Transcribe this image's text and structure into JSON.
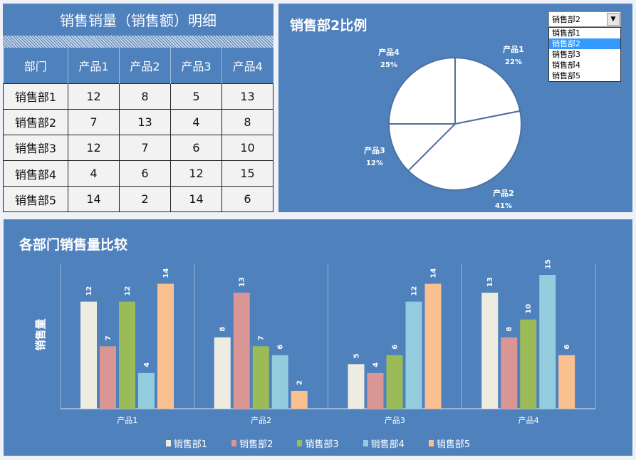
{
  "table": {
    "title": "销售销量（销售额）明细",
    "headers": [
      "部门",
      "产品1",
      "产品2",
      "产品3",
      "产品4"
    ],
    "rows": [
      [
        "销售部1",
        "12",
        "8",
        "5",
        "13"
      ],
      [
        "销售部2",
        "7",
        "13",
        "4",
        "8"
      ],
      [
        "销售部3",
        "12",
        "7",
        "6",
        "10"
      ],
      [
        "销售部4",
        "4",
        "6",
        "12",
        "15"
      ],
      [
        "销售部5",
        "14",
        "2",
        "14",
        "6"
      ]
    ]
  },
  "dropdown": {
    "selected": "销售部2",
    "options": [
      "销售部1",
      "销售部2",
      "销售部3",
      "销售部4",
      "销售部5"
    ],
    "arrow_icon": "triangle-down"
  },
  "colors": {
    "panel": "#4f81bd",
    "series": [
      "#eeece1",
      "#d99694",
      "#9bbb59",
      "#93cddd",
      "#fac090"
    ]
  },
  "chart_data": [
    {
      "type": "pie",
      "title": "销售部2比例",
      "labels": [
        "产品1",
        "产品2",
        "产品3",
        "产品4"
      ],
      "values": [
        7,
        13,
        4,
        8
      ],
      "percent_labels": [
        "22%",
        "41%",
        "12%",
        "25%"
      ],
      "start": "top",
      "direction": "clockwise"
    },
    {
      "type": "bar",
      "title": "各部门销售量比较",
      "ylabel": "销售量",
      "categories": [
        "产品1",
        "产品2",
        "产品3",
        "产品4"
      ],
      "ylim": [
        0,
        15
      ],
      "legend": "bottom",
      "grid": false,
      "series": [
        {
          "name": "销售部1",
          "values": [
            12,
            8,
            5,
            13
          ]
        },
        {
          "name": "销售部2",
          "values": [
            7,
            13,
            4,
            8
          ]
        },
        {
          "name": "销售部3",
          "values": [
            12,
            7,
            6,
            10
          ]
        },
        {
          "name": "销售部4",
          "values": [
            4,
            6,
            12,
            15
          ]
        },
        {
          "name": "销售部5",
          "values": [
            14,
            2,
            14,
            6
          ]
        }
      ]
    }
  ]
}
